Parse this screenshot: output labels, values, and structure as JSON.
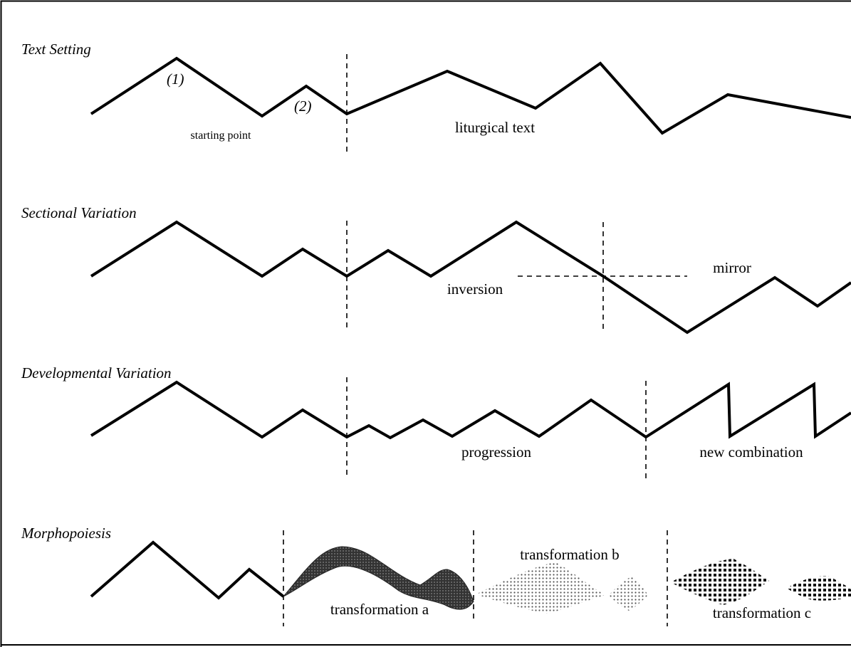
{
  "sections": [
    {
      "title": "Text Setting",
      "labels": [
        "(1)",
        "(2)",
        "starting point",
        "liturgical text"
      ]
    },
    {
      "title": "Sectional Variation",
      "labels": [
        "inversion",
        "mirror"
      ]
    },
    {
      "title": "Developmental Variation",
      "labels": [
        "progression",
        "new combination"
      ]
    },
    {
      "title": "Morphopoiesis",
      "labels": [
        "transformation a",
        "transformation b",
        "transformation c"
      ]
    }
  ]
}
